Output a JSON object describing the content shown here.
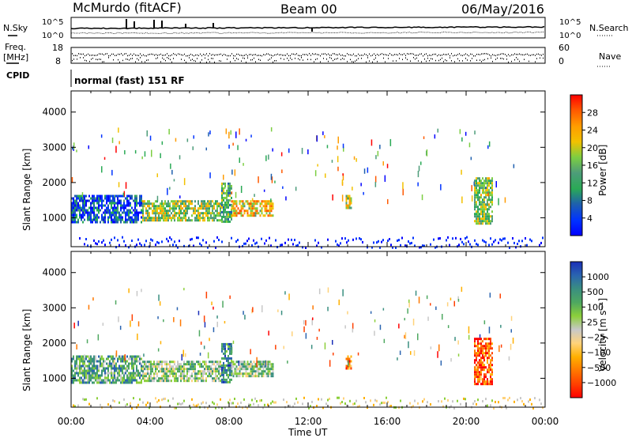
{
  "header": {
    "station": "McMurdo (fitACF)",
    "beam": "Beam 00",
    "date": "06/May/2016"
  },
  "top_panels": {
    "nsky_label": "N.Sky",
    "nsearch_label": "N.Search",
    "noise_tick_high": "10^5",
    "noise_tick_low": "10^0",
    "freq_label_line1": "Freq.",
    "freq_label_line2": "[MHz]",
    "freq_ticks": [
      "18",
      "8"
    ],
    "nave_label": "Nave",
    "nave_ticks": [
      "60",
      "0"
    ],
    "cpid_label": "CPID",
    "cpid_value": "normal (fast) 151 RF"
  },
  "chart_data": [
    {
      "type": "heatmap",
      "name": "power",
      "ylabel": "Slant Range [km]",
      "yticks": [
        1000,
        2000,
        3000,
        4000
      ],
      "ylim": [
        180,
        4600
      ],
      "xticks": [
        "00:00",
        "04:00",
        "08:00",
        "12:00",
        "16:00",
        "20:00",
        "00:00"
      ],
      "xlim_hours": [
        0,
        24
      ],
      "colorbar": {
        "label": "Power [dB]",
        "ticks": [
          "28",
          "24",
          "20",
          "16",
          "12",
          "8",
          "4"
        ],
        "colors": [
          "#ff0000",
          "#ff5a00",
          "#ff9c00",
          "#f2c100",
          "#7cce42",
          "#4d9c7a",
          "#2aaa55",
          "#1e5fae",
          "#0033ff",
          "#0000ff"
        ]
      },
      "regions": [
        {
          "t0": 0.0,
          "t1": 3.6,
          "r0": 850,
          "r1": 1650,
          "level": 0.82
        },
        {
          "t0": 3.6,
          "t1": 7.6,
          "r0": 900,
          "r1": 1500,
          "level": 0.45
        },
        {
          "t0": 7.6,
          "t1": 8.1,
          "r0": 900,
          "r1": 2000,
          "level": 0.55
        },
        {
          "t0": 8.1,
          "t1": 10.2,
          "r0": 1050,
          "r1": 1500,
          "level": 0.3
        },
        {
          "t0": 13.9,
          "t1": 14.2,
          "r0": 1300,
          "r1": 1650,
          "level": 0.4
        },
        {
          "t0": 20.4,
          "t1": 21.3,
          "r0": 850,
          "r1": 2150,
          "level": 0.5
        }
      ]
    },
    {
      "type": "heatmap",
      "name": "velocity",
      "ylabel": "Slant Range [km]",
      "yticks": [
        1000,
        2000,
        3000,
        4000
      ],
      "ylim": [
        180,
        4600
      ],
      "xticks": [
        "00:00",
        "04:00",
        "08:00",
        "12:00",
        "16:00",
        "20:00",
        "00:00"
      ],
      "xlim_hours": [
        0,
        24
      ],
      "xlabel": "Time UT",
      "colorbar": {
        "label": "Velocity [m s⁻¹]",
        "ticks": [
          "1000",
          "500",
          "100",
          "25",
          "−25",
          "−100",
          "−500",
          "−1000"
        ],
        "colors": [
          "#1a2fb8",
          "#2a64b0",
          "#3a8f80",
          "#4ea860",
          "#8ccf3a",
          "#c8c8c8",
          "#ffd27a",
          "#ffb000",
          "#ff7800",
          "#ff4000",
          "#ff0000"
        ]
      },
      "regions": [
        {
          "t0": 0.0,
          "t1": 3.6,
          "r0": 850,
          "r1": 1650,
          "level": 0.3
        },
        {
          "t0": 3.6,
          "t1": 7.6,
          "r0": 900,
          "r1": 1500,
          "level": 0.4
        },
        {
          "t0": 7.6,
          "t1": 8.1,
          "r0": 900,
          "r1": 2000,
          "level": 0.2
        },
        {
          "t0": 8.1,
          "t1": 10.2,
          "r0": 1050,
          "r1": 1500,
          "level": 0.4
        },
        {
          "t0": 13.9,
          "t1": 14.2,
          "r0": 1300,
          "r1": 1650,
          "level": 0.85
        },
        {
          "t0": 20.4,
          "t1": 21.3,
          "r0": 850,
          "r1": 2150,
          "level": 0.85
        }
      ]
    }
  ]
}
